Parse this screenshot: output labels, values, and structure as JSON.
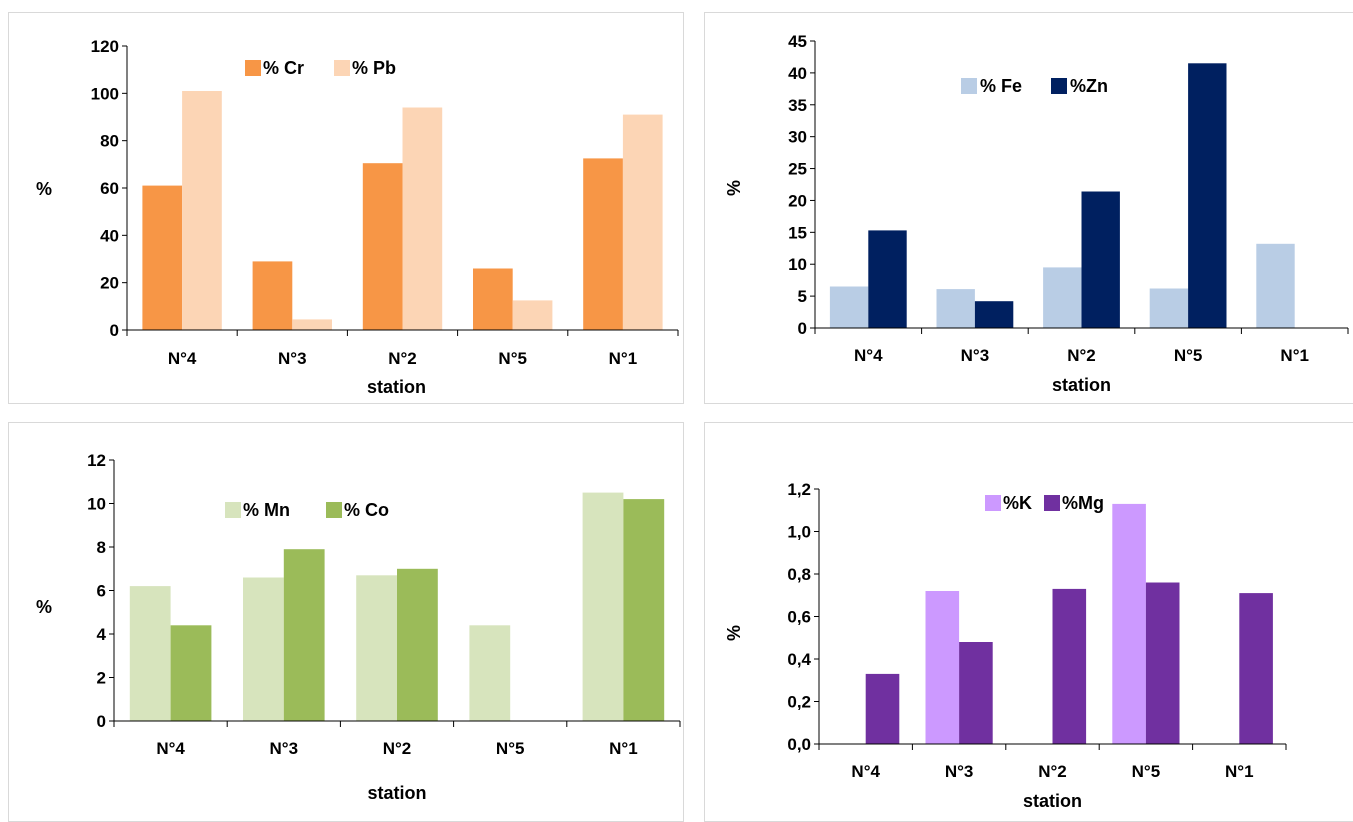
{
  "chart_data": [
    {
      "type": "bar",
      "categories": [
        "N°4",
        "N°3",
        "N°2",
        "N°5",
        "N°1"
      ],
      "series": [
        {
          "name": "% Cr",
          "values": [
            61,
            29,
            70.5,
            26,
            72.5
          ],
          "color": "#f79646"
        },
        {
          "name": "% Pb",
          "values": [
            101,
            4.5,
            94,
            12.5,
            91
          ],
          "color": "#fcd5b5"
        }
      ],
      "yticks": [
        "0",
        "20",
        "40",
        "60",
        "80",
        "100",
        "120"
      ],
      "ylim": [
        0,
        120
      ],
      "xlabel": "station",
      "ylabel": "%",
      "grid": false,
      "legend": "top-center"
    },
    {
      "type": "bar",
      "categories": [
        "N°4",
        "N°3",
        "N°2",
        "N°5",
        "N°1"
      ],
      "series": [
        {
          "name": "% Fe",
          "values": [
            6.5,
            6.1,
            9.5,
            6.2,
            13.2
          ],
          "color": "#b9cde5"
        },
        {
          "name": "%Zn",
          "values": [
            15.3,
            4.2,
            21.4,
            41.5,
            0
          ],
          "color": "#002060"
        }
      ],
      "yticks": [
        "0",
        "5",
        "10",
        "15",
        "20",
        "25",
        "30",
        "35",
        "40",
        "45"
      ],
      "ylim": [
        0,
        45
      ],
      "xlabel": "station",
      "ylabel": "%",
      "grid": false,
      "legend": "top-center"
    },
    {
      "type": "bar",
      "categories": [
        "N°4",
        "N°3",
        "N°2",
        "N°5",
        "N°1"
      ],
      "series": [
        {
          "name": "% Mn",
          "values": [
            6.2,
            6.6,
            6.7,
            4.4,
            10.5
          ],
          "color": "#d7e4bd"
        },
        {
          "name": "% Co",
          "values": [
            4.4,
            7.9,
            7.0,
            0,
            10.2
          ],
          "color": "#9bbb59"
        }
      ],
      "yticks": [
        "0",
        "2",
        "4",
        "6",
        "8",
        "10",
        "12"
      ],
      "ylim": [
        0,
        12
      ],
      "xlabel": "station",
      "ylabel": "%",
      "grid": false,
      "legend": "top-center"
    },
    {
      "type": "bar",
      "categories": [
        "N°4",
        "N°3",
        "N°2",
        "N°5",
        "N°1"
      ],
      "series": [
        {
          "name": "%K",
          "values": [
            0,
            0.72,
            0,
            1.13,
            0
          ],
          "color": "#cc99ff"
        },
        {
          "name": "%Mg",
          "values": [
            0.33,
            0.48,
            0.73,
            0.76,
            0.71
          ],
          "color": "#7030a0"
        }
      ],
      "yticks": [
        "0,0",
        "0,2",
        "0,4",
        "0,6",
        "0,8",
        "1,0",
        "1,2"
      ],
      "ylim": [
        0,
        1.2
      ],
      "xlabel": "station",
      "ylabel": "%",
      "grid": false,
      "legend": "top-center"
    }
  ]
}
